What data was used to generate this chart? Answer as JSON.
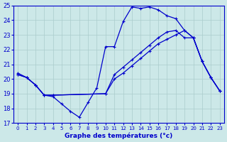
{
  "title": "Graphe des températures (°c)",
  "bg_color": "#cce8e8",
  "grid_color": "#aacccc",
  "line_color": "#0000cc",
  "xlim": [
    -0.5,
    23.5
  ],
  "ylim": [
    17,
    25
  ],
  "yticks": [
    17,
    18,
    19,
    20,
    21,
    22,
    23,
    24,
    25
  ],
  "xticks": [
    0,
    1,
    2,
    3,
    4,
    5,
    6,
    7,
    8,
    9,
    10,
    11,
    12,
    13,
    14,
    15,
    16,
    17,
    18,
    19,
    20,
    21,
    22,
    23
  ],
  "line1_x": [
    0,
    1,
    2,
    3,
    4,
    5,
    6,
    7,
    8,
    9,
    10,
    11,
    12,
    13,
    14,
    15,
    16,
    17,
    18,
    19,
    20,
    21,
    22,
    23
  ],
  "line1_y": [
    20.4,
    20.1,
    19.6,
    18.9,
    18.8,
    18.3,
    17.8,
    17.4,
    18.4,
    19.4,
    22.2,
    22.2,
    23.9,
    24.9,
    24.8,
    24.9,
    24.7,
    24.3,
    24.1,
    23.3,
    22.8,
    21.2,
    20.1,
    19.2
  ],
  "line2_x": [
    0,
    1,
    2,
    3,
    4,
    10,
    11,
    12,
    13,
    14,
    15,
    16,
    17,
    18,
    19,
    20,
    21,
    22,
    23
  ],
  "line2_y": [
    20.3,
    20.1,
    19.6,
    18.9,
    18.9,
    19.0,
    20.3,
    20.8,
    21.3,
    21.8,
    22.3,
    22.8,
    23.2,
    23.3,
    22.8,
    22.8,
    21.2,
    20.1,
    19.2
  ],
  "line3_x": [
    0,
    1,
    2,
    3,
    4,
    10,
    11,
    12,
    13,
    14,
    15,
    16,
    17,
    18,
    19,
    20,
    21,
    22,
    23
  ],
  "line3_y": [
    20.3,
    20.1,
    19.6,
    18.9,
    18.9,
    19.0,
    20.0,
    20.4,
    20.9,
    21.4,
    21.9,
    22.4,
    22.7,
    23.0,
    23.3,
    22.8,
    21.2,
    20.1,
    19.2
  ]
}
